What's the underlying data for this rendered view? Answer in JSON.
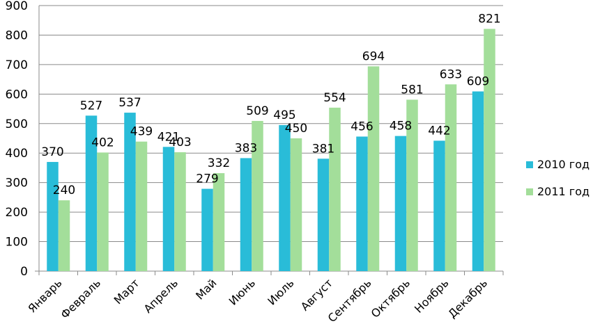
{
  "chart_data": {
    "type": "bar",
    "title": "",
    "xlabel": "",
    "ylabel": "",
    "ylim": [
      0,
      900
    ],
    "yticks": [
      0,
      100,
      200,
      300,
      400,
      500,
      600,
      700,
      800,
      900
    ],
    "grid": true,
    "legend_position": "right",
    "categories": [
      "Январь",
      "Февраль",
      "Март",
      "Апрель",
      "Май",
      "Июнь",
      "Июль",
      "Август",
      "Сентябрь",
      "Октябрь",
      "Ноябрь",
      "Декабрь"
    ],
    "series": [
      {
        "name": "2010 год",
        "color": "#29BCD8",
        "values": [
          370,
          527,
          537,
          421,
          279,
          383,
          495,
          381,
          456,
          458,
          442,
          609
        ]
      },
      {
        "name": "2011 год",
        "color": "#A3DE9A",
        "values": [
          240,
          402,
          439,
          403,
          332,
          509,
          450,
          554,
          694,
          581,
          633,
          821
        ]
      }
    ]
  }
}
